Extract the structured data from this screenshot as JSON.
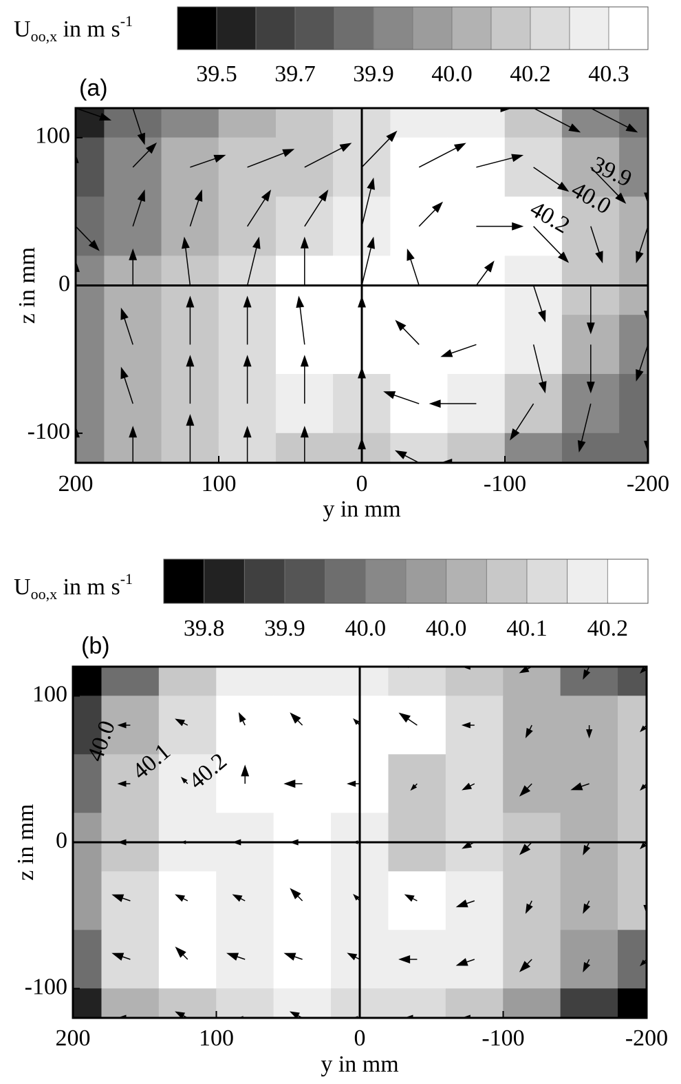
{
  "chart_data": [
    {
      "type": "contour",
      "panel_label": "(a)",
      "xlabel": "y in mm",
      "ylabel": "z in mm",
      "xlim": [
        200,
        -200
      ],
      "ylim": [
        -120,
        120
      ],
      "xticks": [
        200,
        100,
        0,
        -100,
        -200
      ],
      "yticks": [
        100,
        0,
        -100
      ],
      "colorbar": {
        "label": {
          "main": "U",
          "sub": "oo,x",
          "mid": " in m s",
          "sup": "-1"
        },
        "levels": [
          39.42,
          39.5,
          39.58,
          39.66,
          39.74,
          39.86,
          39.94,
          40.0,
          40.08,
          40.18,
          40.24,
          40.3,
          40.38
        ],
        "colors": [
          "#000000",
          "#222222",
          "#404040",
          "#555555",
          "#6e6e6e",
          "#888888",
          "#9c9c9c",
          "#b2b2b2",
          "#c8c8c8",
          "#dcdcdc",
          "#eeeeee",
          "#ffffff"
        ],
        "ticks": [
          39.5,
          {
            "value": 39.66,
            "label": "39.7"
          },
          {
            "value": 39.86,
            "label": "39.9"
          },
          {
            "value": 40.0,
            "label": "40.0"
          },
          {
            "value": 40.18,
            "label": "40.2"
          },
          40.3
        ]
      },
      "field": {
        "y": [
          200,
          160,
          120,
          80,
          40,
          0,
          -40,
          -80,
          -120,
          -160,
          -200
        ],
        "z": [
          120,
          80,
          40,
          0,
          -40,
          -80,
          -120
        ],
        "U": [
          [
            39.5,
            39.8,
            39.9,
            40.0,
            40.1,
            40.2,
            40.25,
            40.25,
            40.1,
            39.9,
            39.8
          ],
          [
            39.7,
            39.9,
            40.0,
            40.1,
            40.15,
            40.2,
            40.3,
            40.35,
            40.2,
            40.0,
            39.9
          ],
          [
            39.8,
            39.9,
            40.0,
            40.1,
            40.2,
            40.25,
            40.3,
            40.35,
            40.3,
            40.1,
            40.0
          ],
          [
            39.9,
            40.0,
            40.1,
            40.2,
            40.3,
            40.35,
            40.3,
            40.3,
            40.25,
            40.1,
            40.0
          ],
          [
            39.9,
            40.0,
            40.1,
            40.2,
            40.3,
            40.3,
            40.3,
            40.35,
            40.25,
            40.0,
            39.9
          ],
          [
            39.9,
            40.0,
            40.1,
            40.2,
            40.25,
            40.2,
            40.3,
            40.25,
            40.1,
            39.9,
            39.8
          ],
          [
            39.9,
            40.0,
            40.1,
            40.2,
            40.15,
            40.1,
            40.2,
            40.1,
            39.9,
            39.8,
            39.8
          ]
        ]
      },
      "vectors": {
        "vy": [
          [
            -0.6,
            -0.2,
            -0.8,
            -0.8,
            -0.6,
            -0.4,
            -0.8,
            -0.6,
            -0.8,
            -0.8,
            -0.4
          ],
          [
            0,
            -0.4,
            -0.6,
            -0.8,
            -0.8,
            -0.6,
            -0.8,
            -0.8,
            -0.6,
            -0.6,
            0
          ],
          [
            -0.4,
            -0.2,
            -0.2,
            -0.4,
            -0.4,
            -0.2,
            -0.4,
            -0.8,
            -0.6,
            -0.2,
            0.2
          ],
          [
            0,
            0,
            0.1,
            -0.2,
            0,
            -0.2,
            0.2,
            -0.3,
            -0.2,
            0,
            0
          ],
          [
            0.2,
            0.2,
            0,
            0,
            0.1,
            0,
            0.4,
            0.6,
            -0.2,
            0,
            0.2
          ],
          [
            0.6,
            0.2,
            0,
            0,
            0,
            0,
            0.6,
            0.8,
            0.4,
            0.2,
            0
          ],
          [
            0,
            0,
            0,
            0,
            0,
            0,
            0.4,
            0.6,
            0.4,
            0,
            0
          ]
        ],
        "vz": [
          [
            -0.2,
            -0.6,
            0.1,
            0.1,
            0.2,
            0.4,
            0.4,
            0,
            -0.4,
            -0.4,
            -0.6
          ],
          [
            0.2,
            0.4,
            0.2,
            0.3,
            0.4,
            0.6,
            0.4,
            0.2,
            -0.4,
            -0.6,
            -0.6
          ],
          [
            -0.4,
            0.6,
            0.6,
            0.6,
            0.6,
            0.8,
            0.4,
            0,
            -0.6,
            -0.6,
            -0.6
          ],
          [
            0.4,
            0.6,
            0.8,
            0.8,
            0.8,
            0.8,
            0.6,
            0.4,
            -0.6,
            -0.8,
            -0.6
          ],
          [
            0.2,
            0.6,
            0.8,
            0.8,
            0.8,
            0.8,
            0.4,
            -0.2,
            -0.8,
            -0.8,
            -0.6
          ],
          [
            0.1,
            0.6,
            0.8,
            0.8,
            0.8,
            0.6,
            0.2,
            0,
            -0.6,
            -0.8,
            -0.8
          ],
          [
            0.6,
            0.6,
            0.8,
            0.6,
            0.6,
            0.4,
            0.2,
            0,
            -0.4,
            -0.6,
            -0.6
          ]
        ]
      },
      "annotations": [
        "39.9",
        "40.0",
        "40.2"
      ]
    },
    {
      "type": "contour",
      "panel_label": "(b)",
      "xlabel": "y in mm",
      "ylabel": "z in mm",
      "xlim": [
        200,
        -200
      ],
      "ylim": [
        -120,
        120
      ],
      "xticks": [
        200,
        100,
        0,
        -100,
        -200
      ],
      "yticks": [
        100,
        0,
        -100
      ],
      "colorbar": {
        "label": {
          "main": "U",
          "sub": "oo,x",
          "mid": " in m s",
          "sup": "-1"
        },
        "levels": [
          39.75,
          39.79,
          39.83,
          39.875,
          39.92,
          39.96,
          40.0,
          40.04,
          40.08,
          40.125,
          40.17,
          40.21,
          40.25
        ],
        "colors": [
          "#000000",
          "#222222",
          "#404040",
          "#555555",
          "#6e6e6e",
          "#888888",
          "#9c9c9c",
          "#b2b2b2",
          "#c8c8c8",
          "#dcdcdc",
          "#eeeeee",
          "#ffffff"
        ],
        "ticks": [
          {
            "value": 39.79,
            "label": "39.8"
          },
          {
            "value": 39.875,
            "label": "39.9"
          },
          {
            "value": 39.96,
            "label": "40.0"
          },
          {
            "value": 40.04,
            "label": "40.0"
          },
          {
            "value": 40.125,
            "label": "40.1"
          },
          {
            "value": 40.21,
            "label": "40.2"
          }
        ]
      },
      "field": {
        "y": [
          200,
          160,
          120,
          80,
          40,
          0,
          -40,
          -80,
          -120,
          -160,
          -200
        ],
        "z": [
          120,
          80,
          40,
          0,
          -40,
          -80,
          -120
        ],
        "U": [
          [
            39.75,
            39.95,
            40.1,
            40.2,
            40.2,
            40.2,
            40.15,
            40.1,
            40.05,
            39.95,
            39.9
          ],
          [
            39.85,
            40.05,
            40.15,
            40.21,
            40.25,
            40.21,
            40.22,
            40.15,
            40.05,
            40.05,
            40.1
          ],
          [
            39.95,
            40.1,
            40.17,
            40.22,
            40.25,
            40.21,
            40.1,
            40.15,
            40.05,
            40.05,
            40.1
          ],
          [
            40.0,
            40.12,
            40.17,
            40.2,
            40.25,
            40.2,
            40.1,
            40.15,
            40.1,
            40.05,
            40.1
          ],
          [
            40.0,
            40.15,
            40.22,
            40.2,
            40.25,
            40.2,
            40.22,
            40.2,
            40.1,
            40.05,
            40.1
          ],
          [
            39.95,
            40.15,
            40.22,
            40.2,
            40.25,
            40.2,
            40.2,
            40.17,
            40.1,
            40.0,
            39.95
          ],
          [
            39.8,
            40.05,
            40.1,
            40.15,
            40.2,
            40.15,
            40.15,
            40.1,
            40.0,
            39.85,
            39.78
          ]
        ]
      },
      "vectors": {
        "vy": [
          [
            0.1,
            0.2,
            0.1,
            0.2,
            0.3,
            0.2,
            0.3,
            0.2,
            0.2,
            0.1,
            0.1
          ],
          [
            0.1,
            0.2,
            0.2,
            0.1,
            0.2,
            0.1,
            0.3,
            0.2,
            0.1,
            0,
            0.1
          ],
          [
            0.2,
            0.2,
            0.1,
            0,
            0.3,
            0.2,
            0.1,
            0.2,
            0.2,
            0.3,
            0.1
          ],
          [
            0.1,
            0.2,
            0.1,
            0.2,
            0.2,
            0.1,
            0,
            0.2,
            0.2,
            0.1,
            0.1
          ],
          [
            0.2,
            0.3,
            0.2,
            0.2,
            0.2,
            0.1,
            0.2,
            0.3,
            0.1,
            0.1,
            0
          ],
          [
            0.2,
            0.3,
            0.2,
            0.3,
            0.3,
            0.2,
            0.3,
            0.3,
            0.2,
            0.1,
            0.1
          ],
          [
            0.1,
            0.2,
            0.2,
            0.1,
            0.2,
            0.1,
            0.2,
            0.2,
            0.1,
            0.1,
            0.1
          ]
        ],
        "vz": [
          [
            0,
            0.1,
            0.1,
            0.1,
            0.2,
            0.1,
            0.1,
            0,
            -0.1,
            -0.2,
            -0.1
          ],
          [
            -0.1,
            0,
            0.1,
            0.2,
            0.2,
            0.1,
            0.2,
            0,
            -0.2,
            -0.2,
            -0.1
          ],
          [
            0,
            0,
            0.1,
            0.3,
            0,
            0,
            -0.1,
            -0.1,
            -0.2,
            -0.1,
            -0.1
          ],
          [
            0,
            0,
            0,
            0,
            0,
            0,
            0,
            -0.1,
            -0.2,
            -0.2,
            -0.1
          ],
          [
            0,
            0.1,
            0.1,
            0.1,
            0.2,
            0.1,
            0.1,
            -0.1,
            -0.2,
            -0.2,
            -0.2
          ],
          [
            0,
            0.1,
            0.2,
            0.1,
            0.1,
            0.1,
            0,
            -0.1,
            -0.2,
            -0.2,
            -0.1
          ],
          [
            0,
            0,
            0.1,
            0,
            0.1,
            0,
            0,
            0,
            -0.1,
            -0.1,
            -0.1
          ]
        ]
      },
      "annotations": [
        "40.0",
        "40.1",
        "40.2"
      ]
    }
  ]
}
